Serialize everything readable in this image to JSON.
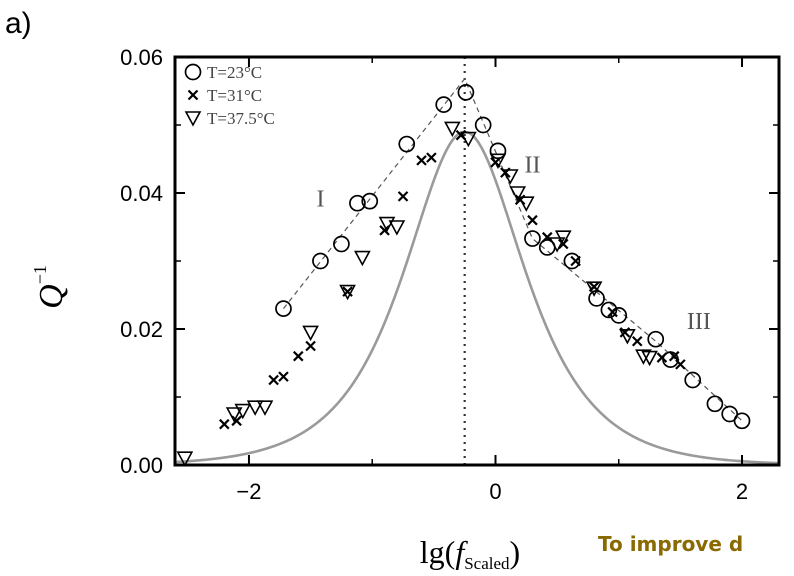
{
  "panel_label": "a)",
  "note": "To improve d",
  "chart_data": {
    "type": "scatter",
    "title": "",
    "xlim": [
      -2.6,
      2.3
    ],
    "ylim": [
      0.0,
      0.06
    ],
    "x_ticks": [
      -2,
      0,
      2
    ],
    "x_tick_labels": [
      "−2",
      "0",
      "2"
    ],
    "y_ticks": [
      0.0,
      0.02,
      0.04,
      0.06
    ],
    "y_tick_labels": [
      "0.00",
      "0.02",
      "0.04",
      "0.06"
    ],
    "xlabel": {
      "main": "lg(",
      "italic": "f",
      "sub": "Scaled",
      "close": ")"
    },
    "ylabel": {
      "main": "Q",
      "sup": "−1"
    },
    "legend_position": "top-left",
    "region_labels": [
      {
        "text": "I",
        "x": -1.42,
        "y": 0.038
      },
      {
        "text": "II",
        "x": 0.3,
        "y": 0.043
      },
      {
        "text": "III",
        "x": 1.65,
        "y": 0.02
      }
    ],
    "peak_line_x": -0.25,
    "series": [
      {
        "name": "T=23°C",
        "marker": "circle",
        "points": [
          [
            -1.72,
            0.023
          ],
          [
            -1.42,
            0.03
          ],
          [
            -1.25,
            0.0325
          ],
          [
            -1.12,
            0.0385
          ],
          [
            -1.02,
            0.0388
          ],
          [
            -0.72,
            0.0472
          ],
          [
            -0.42,
            0.053
          ],
          [
            -0.24,
            0.0548
          ],
          [
            -0.1,
            0.05
          ],
          [
            0.02,
            0.0462
          ],
          [
            0.3,
            0.0333
          ],
          [
            0.42,
            0.032
          ],
          [
            0.62,
            0.03
          ],
          [
            0.82,
            0.0245
          ],
          [
            0.92,
            0.0228
          ],
          [
            1.0,
            0.022
          ],
          [
            1.3,
            0.0185
          ],
          [
            1.42,
            0.0155
          ],
          [
            1.6,
            0.0125
          ],
          [
            1.78,
            0.009
          ],
          [
            1.9,
            0.0075
          ],
          [
            2.0,
            0.0065
          ]
        ]
      },
      {
        "name": "T=31°C",
        "marker": "cross",
        "points": [
          [
            -2.2,
            0.006
          ],
          [
            -2.1,
            0.0065
          ],
          [
            -1.8,
            0.0125
          ],
          [
            -1.72,
            0.013
          ],
          [
            -1.6,
            0.016
          ],
          [
            -1.5,
            0.0175
          ],
          [
            -1.2,
            0.0255
          ],
          [
            -0.9,
            0.0345
          ],
          [
            -0.75,
            0.0395
          ],
          [
            -0.6,
            0.0448
          ],
          [
            -0.52,
            0.0452
          ],
          [
            -0.28,
            0.0485
          ],
          [
            0.0,
            0.0445
          ],
          [
            0.08,
            0.043
          ],
          [
            0.2,
            0.039
          ],
          [
            0.3,
            0.036
          ],
          [
            0.42,
            0.0335
          ],
          [
            0.55,
            0.0325
          ],
          [
            0.65,
            0.03
          ],
          [
            0.8,
            0.0262
          ],
          [
            0.95,
            0.0225
          ],
          [
            1.05,
            0.0195
          ],
          [
            1.15,
            0.0182
          ],
          [
            1.35,
            0.0158
          ],
          [
            1.45,
            0.016
          ],
          [
            1.5,
            0.0148
          ]
        ]
      },
      {
        "name": "T=37.5°C",
        "marker": "triangle-down",
        "points": [
          [
            -2.52,
            0.001
          ],
          [
            -2.12,
            0.0075
          ],
          [
            -2.05,
            0.008
          ],
          [
            -1.95,
            0.0085
          ],
          [
            -1.87,
            0.0085
          ],
          [
            -1.5,
            0.0195
          ],
          [
            -1.2,
            0.0255
          ],
          [
            -1.08,
            0.0305
          ],
          [
            -0.88,
            0.0355
          ],
          [
            -0.8,
            0.035
          ],
          [
            -0.35,
            0.0495
          ],
          [
            -0.22,
            0.048
          ],
          [
            0.02,
            0.0448
          ],
          [
            0.12,
            0.0425
          ],
          [
            0.18,
            0.04
          ],
          [
            0.25,
            0.0385
          ],
          [
            0.5,
            0.0325
          ],
          [
            0.55,
            0.0335
          ],
          [
            0.8,
            0.026
          ],
          [
            1.07,
            0.019
          ],
          [
            1.2,
            0.016
          ],
          [
            1.25,
            0.0158
          ]
        ]
      }
    ],
    "dashed_fit": [
      [
        -1.72,
        0.023
      ],
      [
        -0.25,
        0.0568
      ],
      [
        0.3,
        0.0333
      ],
      [
        1.3,
        0.0182
      ],
      [
        2.0,
        0.0065
      ]
    ],
    "debye_curve": {
      "center": -0.25,
      "peak": 0.049
    }
  }
}
